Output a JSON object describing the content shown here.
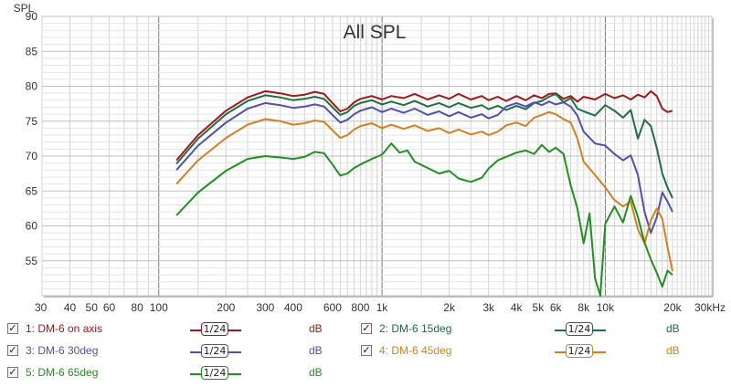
{
  "chart_data": {
    "type": "line",
    "title": "All SPL",
    "ylabel": "SPL",
    "xunit": "kHz",
    "xscale": "log",
    "xlim": [
      30,
      30000
    ],
    "ylim": [
      50,
      90
    ],
    "xticks": [
      {
        "v": 30,
        "t": "30"
      },
      {
        "v": 40,
        "t": "40"
      },
      {
        "v": 50,
        "t": "50"
      },
      {
        "v": 60,
        "t": "60"
      },
      {
        "v": 80,
        "t": "80"
      },
      {
        "v": 100,
        "t": "100"
      },
      {
        "v": 200,
        "t": "200"
      },
      {
        "v": 300,
        "t": "300"
      },
      {
        "v": 400,
        "t": "400"
      },
      {
        "v": 600,
        "t": "600"
      },
      {
        "v": 800,
        "t": "800"
      },
      {
        "v": 1000,
        "t": "1k"
      },
      {
        "v": 2000,
        "t": "2k"
      },
      {
        "v": 3000,
        "t": "3k"
      },
      {
        "v": 4000,
        "t": "4k"
      },
      {
        "v": 5000,
        "t": "5k"
      },
      {
        "v": 6000,
        "t": "6k"
      },
      {
        "v": 8000,
        "t": "8k"
      },
      {
        "v": 10000,
        "t": "10k"
      },
      {
        "v": 20000,
        "t": "20k"
      },
      {
        "v": 30000,
        "t": "30kHz"
      }
    ],
    "yticks": [
      {
        "v": 90,
        "t": "90"
      },
      {
        "v": 85,
        "t": "85"
      },
      {
        "v": 80,
        "t": "80"
      },
      {
        "v": 75,
        "t": "75"
      },
      {
        "v": 70,
        "t": "70"
      },
      {
        "v": 65,
        "t": "65"
      },
      {
        "v": 60,
        "t": "60"
      },
      {
        "v": 55,
        "t": "55"
      }
    ],
    "grid": true,
    "series": [
      {
        "name": "1: DM-6 on axis",
        "color": "#a01818",
        "points": [
          [
            120,
            69.4
          ],
          [
            150,
            73
          ],
          [
            200,
            76.5
          ],
          [
            250,
            78.4
          ],
          [
            300,
            79.3
          ],
          [
            350,
            79
          ],
          [
            400,
            78.6
          ],
          [
            450,
            78.8
          ],
          [
            500,
            79.2
          ],
          [
            550,
            78.9
          ],
          [
            600,
            77.6
          ],
          [
            650,
            76.4
          ],
          [
            700,
            76.8
          ],
          [
            750,
            77.7
          ],
          [
            800,
            78.2
          ],
          [
            900,
            78.6
          ],
          [
            1000,
            78.1
          ],
          [
            1100,
            78.6
          ],
          [
            1250,
            78.3
          ],
          [
            1400,
            78.9
          ],
          [
            1600,
            78.1
          ],
          [
            1800,
            78.7
          ],
          [
            2000,
            78.2
          ],
          [
            2200,
            78.9
          ],
          [
            2500,
            78.1
          ],
          [
            2800,
            78.6
          ],
          [
            3000,
            78
          ],
          [
            3300,
            78.5
          ],
          [
            3600,
            77.9
          ],
          [
            4000,
            78.6
          ],
          [
            4400,
            78
          ],
          [
            4800,
            78.7
          ],
          [
            5200,
            78.3
          ],
          [
            5600,
            78.9
          ],
          [
            6000,
            79
          ],
          [
            6500,
            78.2
          ],
          [
            7000,
            78.6
          ],
          [
            7500,
            77.8
          ],
          [
            8000,
            78.5
          ],
          [
            9000,
            78.1
          ],
          [
            10000,
            78.9
          ],
          [
            11000,
            78.3
          ],
          [
            12000,
            78.7
          ],
          [
            13000,
            78.1
          ],
          [
            14000,
            78.8
          ],
          [
            15000,
            78.4
          ],
          [
            16000,
            79.3
          ],
          [
            17000,
            78.6
          ],
          [
            18000,
            76.8
          ],
          [
            19000,
            76.3
          ],
          [
            20000,
            76.5
          ]
        ]
      },
      {
        "name": "2: DM-6 15deg",
        "color": "#1e7040",
        "points": [
          [
            120,
            68.9
          ],
          [
            150,
            72.5
          ],
          [
            200,
            76
          ],
          [
            250,
            77.9
          ],
          [
            300,
            78.7
          ],
          [
            350,
            78.4
          ],
          [
            400,
            78
          ],
          [
            450,
            78.2
          ],
          [
            500,
            78.5
          ],
          [
            550,
            78.2
          ],
          [
            600,
            77
          ],
          [
            650,
            75.9
          ],
          [
            700,
            76.3
          ],
          [
            750,
            77.2
          ],
          [
            800,
            77.6
          ],
          [
            900,
            78
          ],
          [
            1000,
            77.4
          ],
          [
            1100,
            77.8
          ],
          [
            1250,
            77.3
          ],
          [
            1400,
            77.9
          ],
          [
            1600,
            77.1
          ],
          [
            1800,
            77.6
          ],
          [
            2000,
            77
          ],
          [
            2200,
            77.6
          ],
          [
            2500,
            76.9
          ],
          [
            2800,
            77.3
          ],
          [
            3000,
            76.7
          ],
          [
            3300,
            77.2
          ],
          [
            3600,
            76.6
          ],
          [
            4000,
            77.2
          ],
          [
            4400,
            76.7
          ],
          [
            4800,
            77.6
          ],
          [
            5200,
            77.9
          ],
          [
            5600,
            78.5
          ],
          [
            6000,
            78.9
          ],
          [
            6500,
            77.7
          ],
          [
            7000,
            78.3
          ],
          [
            7500,
            76.8
          ],
          [
            8000,
            76.4
          ],
          [
            9000,
            75.8
          ],
          [
            10000,
            77.3
          ],
          [
            11000,
            76.5
          ],
          [
            12000,
            75.5
          ],
          [
            13000,
            76.6
          ],
          [
            14000,
            72.5
          ],
          [
            15000,
            75.2
          ],
          [
            16000,
            74.3
          ],
          [
            17000,
            71.2
          ],
          [
            18000,
            67.5
          ],
          [
            19000,
            65.5
          ],
          [
            20000,
            64
          ]
        ]
      },
      {
        "name": "3: DM-6 30deg",
        "color": "#5050b4",
        "points": [
          [
            120,
            68
          ],
          [
            150,
            71.5
          ],
          [
            200,
            74.8
          ],
          [
            250,
            76.8
          ],
          [
            300,
            77.6
          ],
          [
            350,
            77.3
          ],
          [
            400,
            76.9
          ],
          [
            450,
            77.1
          ],
          [
            500,
            77.4
          ],
          [
            550,
            77.1
          ],
          [
            600,
            75.9
          ],
          [
            650,
            74.8
          ],
          [
            700,
            75.2
          ],
          [
            750,
            76
          ],
          [
            800,
            76.5
          ],
          [
            900,
            77
          ],
          [
            1000,
            76.3
          ],
          [
            1100,
            76.8
          ],
          [
            1250,
            76.2
          ],
          [
            1400,
            76.8
          ],
          [
            1600,
            75.9
          ],
          [
            1800,
            76.4
          ],
          [
            2000,
            75.7
          ],
          [
            2200,
            76.3
          ],
          [
            2500,
            75.5
          ],
          [
            2800,
            76
          ],
          [
            3000,
            75.4
          ],
          [
            3300,
            75.9
          ],
          [
            3600,
            77.1
          ],
          [
            4000,
            77.6
          ],
          [
            4400,
            77.1
          ],
          [
            4800,
            77.7
          ],
          [
            5200,
            77.3
          ],
          [
            5600,
            77.8
          ],
          [
            6000,
            77.4
          ],
          [
            6500,
            77.7
          ],
          [
            7000,
            77.1
          ],
          [
            7500,
            75.8
          ],
          [
            8000,
            73.5
          ],
          [
            9000,
            71.8
          ],
          [
            10000,
            71.5
          ],
          [
            11000,
            70.3
          ],
          [
            12000,
            69.4
          ],
          [
            13000,
            70.1
          ],
          [
            14000,
            67.3
          ],
          [
            15000,
            62
          ],
          [
            16000,
            59
          ],
          [
            17000,
            61.2
          ],
          [
            18000,
            64.8
          ],
          [
            19000,
            63.5
          ],
          [
            20000,
            62
          ]
        ]
      },
      {
        "name": "4: DM-6 45deg",
        "color": "#d4801e",
        "points": [
          [
            120,
            66
          ],
          [
            150,
            69.4
          ],
          [
            200,
            72.6
          ],
          [
            250,
            74.5
          ],
          [
            300,
            75.3
          ],
          [
            350,
            75
          ],
          [
            400,
            74.5
          ],
          [
            450,
            74.7
          ],
          [
            500,
            75.1
          ],
          [
            550,
            74.9
          ],
          [
            600,
            73.7
          ],
          [
            650,
            72.6
          ],
          [
            700,
            73
          ],
          [
            750,
            73.8
          ],
          [
            800,
            74.3
          ],
          [
            900,
            74.7
          ],
          [
            1000,
            74
          ],
          [
            1100,
            74.5
          ],
          [
            1250,
            73.9
          ],
          [
            1400,
            74.4
          ],
          [
            1600,
            73.6
          ],
          [
            1800,
            74
          ],
          [
            2000,
            73.3
          ],
          [
            2200,
            73.8
          ],
          [
            2500,
            73.1
          ],
          [
            2800,
            73.5
          ],
          [
            3000,
            73
          ],
          [
            3300,
            73.5
          ],
          [
            3600,
            74.4
          ],
          [
            4000,
            74.8
          ],
          [
            4400,
            74.3
          ],
          [
            4800,
            75.5
          ],
          [
            5200,
            75.9
          ],
          [
            5600,
            76.3
          ],
          [
            6000,
            76
          ],
          [
            6500,
            75.3
          ],
          [
            7000,
            74.8
          ],
          [
            7500,
            72.5
          ],
          [
            8000,
            69.2
          ],
          [
            9000,
            67.3
          ],
          [
            10000,
            65.5
          ],
          [
            11000,
            63.7
          ],
          [
            12000,
            62.8
          ],
          [
            13000,
            63.5
          ],
          [
            14000,
            59.5
          ],
          [
            15000,
            57.5
          ],
          [
            16000,
            60.8
          ],
          [
            17000,
            62.5
          ],
          [
            18000,
            61
          ],
          [
            19000,
            57
          ],
          [
            20000,
            53.5
          ]
        ]
      },
      {
        "name": "5: DM-6 65deg",
        "color": "#20901e",
        "points": [
          [
            120,
            61.5
          ],
          [
            150,
            64.8
          ],
          [
            200,
            67.9
          ],
          [
            250,
            69.6
          ],
          [
            300,
            70
          ],
          [
            350,
            69.8
          ],
          [
            400,
            69.6
          ],
          [
            450,
            69.9
          ],
          [
            500,
            70.6
          ],
          [
            550,
            70.4
          ],
          [
            600,
            68.8
          ],
          [
            650,
            67.2
          ],
          [
            700,
            67.5
          ],
          [
            750,
            68.3
          ],
          [
            800,
            68.8
          ],
          [
            900,
            69.6
          ],
          [
            1000,
            70.2
          ],
          [
            1100,
            71.8
          ],
          [
            1200,
            70.5
          ],
          [
            1300,
            70.8
          ],
          [
            1400,
            69.2
          ],
          [
            1600,
            68.3
          ],
          [
            1800,
            67.5
          ],
          [
            2000,
            67.9
          ],
          [
            2200,
            66.8
          ],
          [
            2500,
            66.3
          ],
          [
            2800,
            66.9
          ],
          [
            3000,
            68.2
          ],
          [
            3300,
            69.4
          ],
          [
            3600,
            69.9
          ],
          [
            4000,
            70.5
          ],
          [
            4400,
            70.8
          ],
          [
            4800,
            70.3
          ],
          [
            5200,
            71.6
          ],
          [
            5600,
            70.6
          ],
          [
            6000,
            71.2
          ],
          [
            6500,
            70.3
          ],
          [
            7000,
            65.8
          ],
          [
            7500,
            62.5
          ],
          [
            8000,
            57.5
          ],
          [
            8500,
            61.8
          ],
          [
            9000,
            52.5
          ],
          [
            9500,
            50
          ],
          [
            10000,
            60.3
          ],
          [
            11000,
            62.8
          ],
          [
            12000,
            60.5
          ],
          [
            13000,
            64.3
          ],
          [
            14000,
            61.3
          ],
          [
            15000,
            57.6
          ],
          [
            16000,
            55.2
          ],
          [
            17000,
            53.3
          ],
          [
            18000,
            51.3
          ],
          [
            19000,
            53.6
          ],
          [
            20000,
            53
          ]
        ]
      }
    ]
  },
  "legend": {
    "items": [
      {
        "label": "1: DM-6 on axis",
        "color": "#a01818",
        "smoothing": "1/24",
        "unit": "dB",
        "checked": "✓"
      },
      {
        "label": "2: DM-6 15deg",
        "color": "#1e7040",
        "smoothing": "1/24",
        "unit": "dB",
        "checked": "✓"
      },
      {
        "label": "3: DM-6 30deg",
        "color": "#5050b4",
        "smoothing": "1/24",
        "unit": "dB",
        "checked": "✓"
      },
      {
        "label": "4: DM-6 45deg",
        "color": "#d4801e",
        "smoothing": "1/24",
        "unit": "dB",
        "checked": "✓"
      },
      {
        "label": "5: DM-6 65deg",
        "color": "#20901e",
        "smoothing": "1/24",
        "unit": "dB",
        "checked": "✓"
      }
    ]
  }
}
